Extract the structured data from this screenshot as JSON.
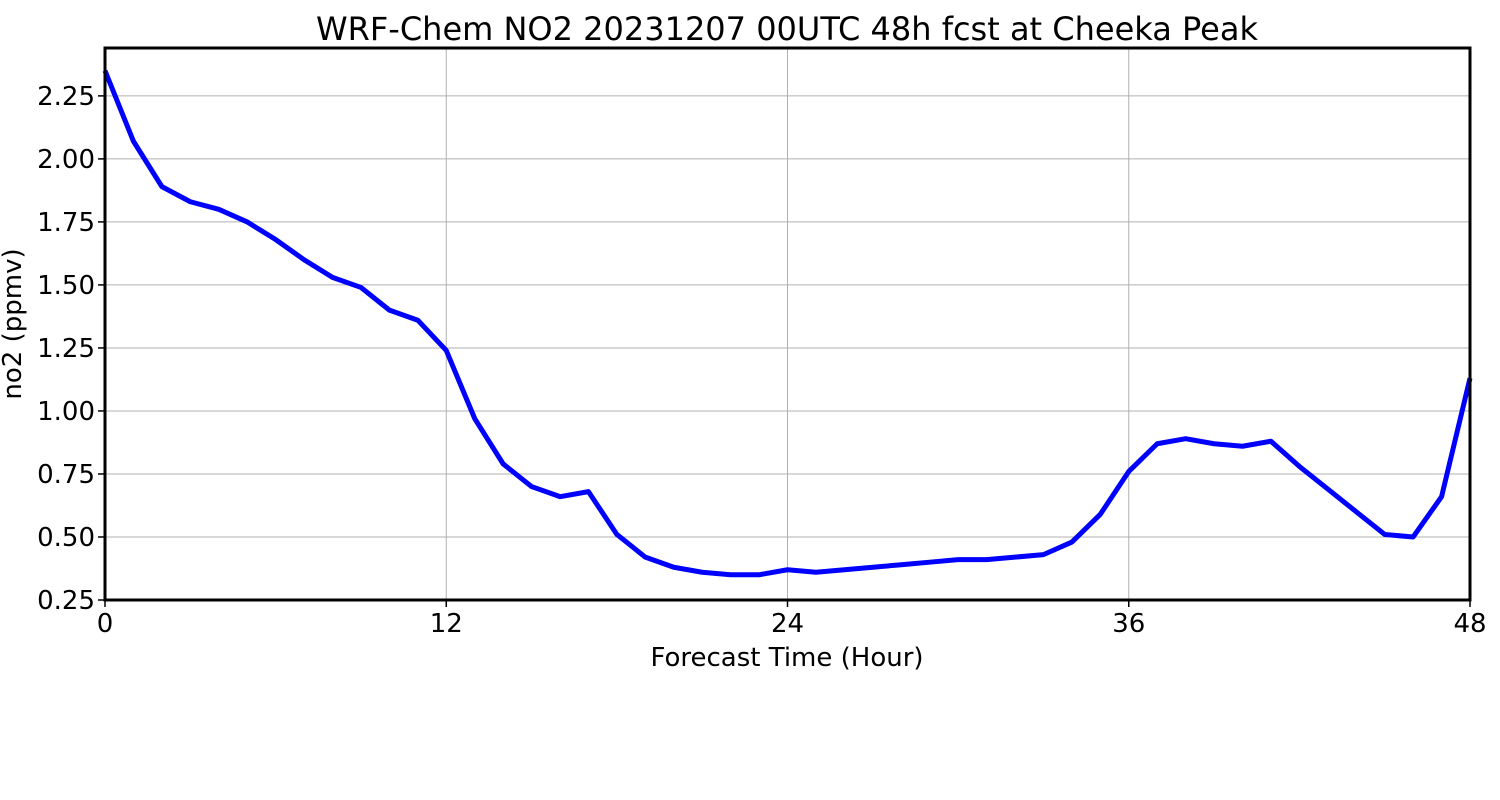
{
  "chart_data": {
    "type": "line",
    "title": "WRF-Chem NO2  20231207 00UTC 48h fcst at Cheeka Peak",
    "xlabel": "Forecast Time (Hour)",
    "ylabel": "no2  (ppmv)",
    "xlim": [
      0,
      48
    ],
    "ylim": [
      0.25,
      2.44
    ],
    "x_ticks": [
      0,
      12,
      24,
      36,
      48
    ],
    "x_tick_labels": [
      "0",
      "12",
      "24",
      "36",
      "48"
    ],
    "y_ticks": [
      0.25,
      0.5,
      0.75,
      1.0,
      1.25,
      1.5,
      1.75,
      2.0,
      2.25
    ],
    "y_tick_labels": [
      "0.25",
      "0.50",
      "0.75",
      "1.00",
      "1.25",
      "1.50",
      "1.75",
      "2.00",
      "2.25"
    ],
    "grid": true,
    "series": [
      {
        "color": "#0000ff",
        "x": [
          0,
          1,
          2,
          3,
          4,
          5,
          6,
          7,
          8,
          9,
          10,
          11,
          12,
          13,
          14,
          15,
          16,
          17,
          18,
          19,
          20,
          21,
          22,
          23,
          24,
          25,
          26,
          27,
          28,
          29,
          30,
          31,
          32,
          33,
          34,
          35,
          36,
          37,
          38,
          39,
          40,
          41,
          42,
          43,
          44,
          45,
          46,
          47,
          48
        ],
        "values": [
          2.35,
          2.07,
          1.89,
          1.83,
          1.8,
          1.75,
          1.68,
          1.6,
          1.53,
          1.49,
          1.4,
          1.36,
          1.24,
          0.97,
          0.79,
          0.7,
          0.66,
          0.68,
          0.51,
          0.42,
          0.38,
          0.36,
          0.35,
          0.35,
          0.37,
          0.36,
          0.37,
          0.38,
          0.39,
          0.4,
          0.41,
          0.41,
          0.42,
          0.43,
          0.48,
          0.59,
          0.76,
          0.87,
          0.89,
          0.87,
          0.86,
          0.88,
          0.78,
          0.69,
          0.6,
          0.51,
          0.5,
          0.66,
          1.13
        ]
      }
    ]
  }
}
